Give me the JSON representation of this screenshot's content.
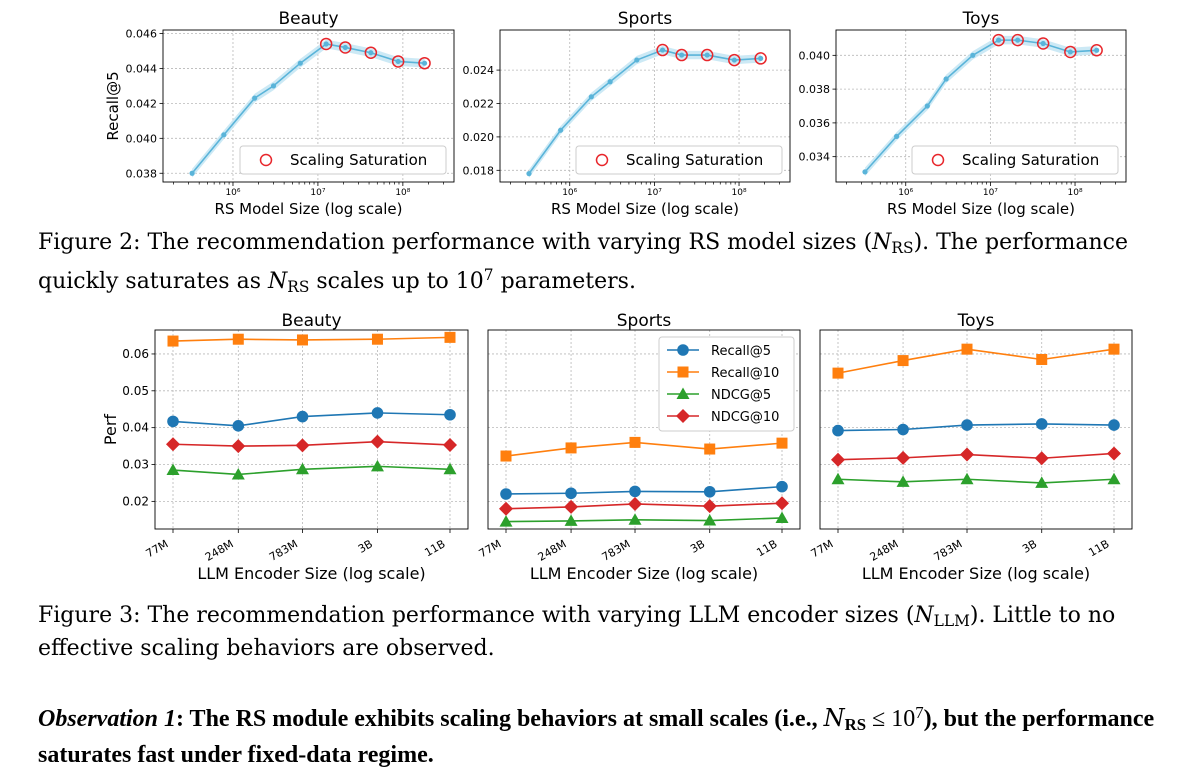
{
  "figure2": {
    "label": "Figure 2:",
    "caption_1": "The recommendation performance with varying RS model sizes (",
    "caption_sym": "N",
    "caption_sub": "RS",
    "caption_2": "). The performance quickly saturates as ",
    "caption_3": " scales up to 10",
    "caption_sup": "7",
    "caption_4": " parameters."
  },
  "figure3": {
    "label": "Figure 3:",
    "caption_1": "The recommendation performance with varying LLM encoder sizes (",
    "caption_sym": "N",
    "caption_sub": "LLM",
    "caption_2": "). Little to no effective scaling behaviors are observed."
  },
  "observation": {
    "title": "Observation 1",
    "text_1": ": The RS module exhibits scaling behaviors at small scales (i.e., ",
    "sym": "N",
    "sub": "RS",
    "leq": " ≤ 10",
    "sup": "7",
    "text_2": "), but the performance saturates fast under fixed-data regime."
  },
  "colors": {
    "rs_line": "#5ab4d9",
    "rs_band": "#bfe3f2",
    "saturation_marker": "#e8262b",
    "recall5": "#1f77b4",
    "recall10": "#ff7f0e",
    "ndcg5": "#2ca02c",
    "ndcg10": "#d62728",
    "grid": "#b8b8b8"
  },
  "chart_data": [
    {
      "type": "line",
      "id": "rs-beauty",
      "title": "Beauty",
      "xlabel": "RS Model Size (log scale)",
      "ylabel": "Recall@5",
      "xscale": "log",
      "xlim": [
        150000,
        400000000
      ],
      "ylim": [
        0.0375,
        0.0462
      ],
      "xticks": [
        1000000,
        10000000,
        100000000
      ],
      "xticklabels": [
        "10⁶",
        "10⁷",
        "10⁸"
      ],
      "yticks": [
        0.038,
        0.04,
        0.042,
        0.044,
        0.046
      ],
      "yticklabels": [
        "0.038",
        "0.040",
        "0.042",
        "0.044",
        "0.046"
      ],
      "x": [
        330000,
        780000,
        1800000,
        3000000,
        6200000,
        12500000,
        21000000,
        42000000,
        88000000,
        180000000
      ],
      "values": [
        0.038,
        0.0402,
        0.0423,
        0.043,
        0.0443,
        0.0454,
        0.0452,
        0.0449,
        0.0444,
        0.0443
      ],
      "band": 0.00025,
      "saturation_from_index": 5,
      "legend": "Scaling Saturation",
      "legend_position": "lower right",
      "grid": true
    },
    {
      "type": "line",
      "id": "rs-sports",
      "title": "Sports",
      "xlabel": "RS Model Size (log scale)",
      "ylabel": "",
      "xscale": "log",
      "xlim": [
        150000,
        400000000
      ],
      "ylim": [
        0.0173,
        0.0264
      ],
      "xticks": [
        1000000,
        10000000,
        100000000
      ],
      "xticklabels": [
        "10⁶",
        "10⁷",
        "10⁸"
      ],
      "yticks": [
        0.018,
        0.02,
        0.022,
        0.024
      ],
      "yticklabels": [
        "0.018",
        "0.020",
        "0.022",
        "0.024"
      ],
      "x": [
        330000,
        780000,
        1800000,
        3000000,
        6200000,
        12500000,
        21000000,
        42000000,
        88000000,
        180000000
      ],
      "values": [
        0.0178,
        0.0204,
        0.0224,
        0.0233,
        0.0246,
        0.0252,
        0.0249,
        0.0249,
        0.0246,
        0.0247
      ],
      "band": 0.00025,
      "saturation_from_index": 5,
      "legend": "Scaling Saturation",
      "legend_position": "lower right",
      "grid": true
    },
    {
      "type": "line",
      "id": "rs-toys",
      "title": "Toys",
      "xlabel": "RS Model Size (log scale)",
      "ylabel": "",
      "xscale": "log",
      "xlim": [
        150000,
        400000000
      ],
      "ylim": [
        0.0325,
        0.0415
      ],
      "xticks": [
        1000000,
        10000000,
        100000000
      ],
      "xticklabels": [
        "10⁶",
        "10⁷",
        "10⁸"
      ],
      "yticks": [
        0.034,
        0.036,
        0.038,
        0.04
      ],
      "yticklabels": [
        "0.034",
        "0.036",
        "0.038",
        "0.040"
      ],
      "x": [
        330000,
        780000,
        1800000,
        3000000,
        6200000,
        12500000,
        21000000,
        42000000,
        88000000,
        180000000
      ],
      "values": [
        0.0331,
        0.0352,
        0.037,
        0.0386,
        0.04,
        0.0409,
        0.0409,
        0.0407,
        0.0402,
        0.0403
      ],
      "band": 0.00025,
      "saturation_from_index": 5,
      "legend": "Scaling Saturation",
      "legend_position": "lower right",
      "grid": true
    },
    {
      "type": "line",
      "id": "llm-beauty",
      "title": "Beauty",
      "xlabel": "LLM Encoder Size (log scale)",
      "ylabel": "Perf",
      "categories": [
        "77M",
        "248M",
        "783M",
        "3B",
        "11B"
      ],
      "x": [
        77,
        248,
        783,
        3000,
        11000
      ],
      "xscale": "log",
      "ylim": [
        0.0125,
        0.0665
      ],
      "yticks": [
        0.02,
        0.03,
        0.04,
        0.05,
        0.06
      ],
      "yticklabels": [
        "0.02",
        "0.03",
        "0.04",
        "0.05",
        "0.06"
      ],
      "series": [
        {
          "name": "Recall@5",
          "values": [
            0.0417,
            0.0405,
            0.043,
            0.044,
            0.0435
          ]
        },
        {
          "name": "Recall@10",
          "values": [
            0.0635,
            0.064,
            0.0638,
            0.064,
            0.0645
          ]
        },
        {
          "name": "NDCG@5",
          "values": [
            0.0285,
            0.0273,
            0.0287,
            0.0295,
            0.0287
          ]
        },
        {
          "name": "NDCG@10",
          "values": [
            0.0355,
            0.035,
            0.0352,
            0.0362,
            0.0353
          ]
        }
      ],
      "grid": true
    },
    {
      "type": "line",
      "id": "llm-sports",
      "title": "Sports",
      "xlabel": "LLM Encoder Size (log scale)",
      "ylabel": "",
      "categories": [
        "77M",
        "248M",
        "783M",
        "3B",
        "11B"
      ],
      "x": [
        77,
        248,
        783,
        3000,
        11000
      ],
      "xscale": "log",
      "ylim": [
        0.0125,
        0.0665
      ],
      "yticks": [],
      "yticklabels": [],
      "series": [
        {
          "name": "Recall@5",
          "values": [
            0.022,
            0.0222,
            0.0227,
            0.0226,
            0.024
          ]
        },
        {
          "name": "Recall@10",
          "values": [
            0.0323,
            0.0345,
            0.036,
            0.0342,
            0.0358
          ]
        },
        {
          "name": "NDCG@5",
          "values": [
            0.0145,
            0.0147,
            0.015,
            0.0148,
            0.0155
          ]
        },
        {
          "name": "NDCG@10",
          "values": [
            0.018,
            0.0185,
            0.0193,
            0.0187,
            0.0195
          ]
        }
      ],
      "legend": [
        "Recall@5",
        "Recall@10",
        "NDCG@5",
        "NDCG@10"
      ],
      "legend_position": "upper right",
      "grid": true
    },
    {
      "type": "line",
      "id": "llm-toys",
      "title": "Toys",
      "xlabel": "LLM Encoder Size (log scale)",
      "ylabel": "",
      "categories": [
        "77M",
        "248M",
        "783M",
        "3B",
        "11B"
      ],
      "x": [
        77,
        248,
        783,
        3000,
        11000
      ],
      "xscale": "log",
      "ylim": [
        0.0125,
        0.0665
      ],
      "yticks": [],
      "yticklabels": [],
      "series": [
        {
          "name": "Recall@5",
          "values": [
            0.0392,
            0.0395,
            0.0407,
            0.041,
            0.0407
          ]
        },
        {
          "name": "Recall@10",
          "values": [
            0.0548,
            0.0582,
            0.0613,
            0.0585,
            0.0613
          ]
        },
        {
          "name": "NDCG@5",
          "values": [
            0.026,
            0.0253,
            0.026,
            0.025,
            0.026
          ]
        },
        {
          "name": "NDCG@10",
          "values": [
            0.0313,
            0.0318,
            0.0327,
            0.0317,
            0.033
          ]
        }
      ],
      "grid": true
    }
  ]
}
